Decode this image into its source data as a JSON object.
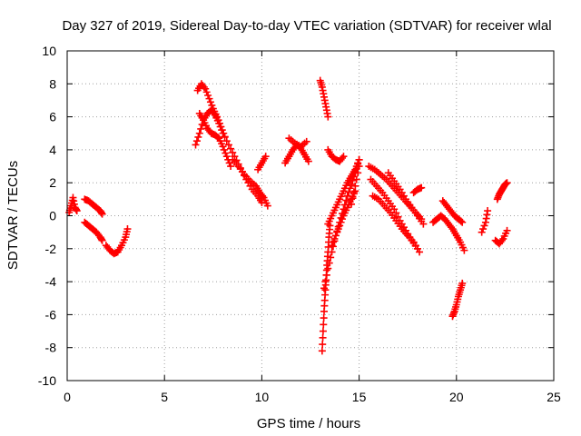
{
  "chart_data": {
    "type": "scatter",
    "title": "Day 327 of 2019, Sidereal Day-to-day VTEC variation (SDTVAR) for receiver wlal",
    "xlabel": "GPS time / hours",
    "ylabel": "SDTVAR / TECUs",
    "xlim": [
      0,
      25
    ],
    "ylim": [
      -10,
      10
    ],
    "xticks": [
      "0",
      "5",
      "10",
      "15",
      "20",
      "25"
    ],
    "yticks": [
      "-10",
      "-8",
      "-6",
      "-4",
      "-2",
      "0",
      "2",
      "4",
      "6",
      "8",
      "10"
    ],
    "grid": true,
    "marker": "+",
    "color": "#ff0000",
    "segments": [
      {
        "x": [
          0.1,
          0.2,
          0.3,
          0.4,
          0.5
        ],
        "y": [
          0.2,
          0.6,
          1.1,
          0.5,
          0.3
        ]
      },
      {
        "x": [
          0.9,
          1.1,
          1.3,
          1.5,
          1.7,
          1.8
        ],
        "y": [
          1.0,
          0.9,
          0.7,
          0.5,
          0.3,
          0.1
        ]
      },
      {
        "x": [
          0.9,
          1.1,
          1.3,
          1.5,
          1.7,
          1.8
        ],
        "y": [
          -0.4,
          -0.6,
          -0.8,
          -1.0,
          -1.3,
          -1.5
        ]
      },
      {
        "x": [
          2.0,
          2.2,
          2.4,
          2.6,
          2.8,
          3.0,
          3.1
        ],
        "y": [
          -1.8,
          -2.1,
          -2.3,
          -2.2,
          -1.8,
          -1.3,
          -0.8
        ]
      },
      {
        "x": [
          6.6,
          6.8,
          7.0,
          7.2,
          7.4,
          7.6,
          7.8,
          8.0,
          8.3,
          8.6,
          8.9,
          9.2,
          9.5,
          9.8,
          10.0
        ],
        "y": [
          4.3,
          5.0,
          5.8,
          6.2,
          6.4,
          6.1,
          5.6,
          5.0,
          4.3,
          3.6,
          2.9,
          2.2,
          1.6,
          1.2,
          0.8
        ]
      },
      {
        "x": [
          6.7,
          6.9,
          7.1,
          7.3,
          7.5,
          7.7,
          7.9,
          8.1
        ],
        "y": [
          7.6,
          8.0,
          7.7,
          7.1,
          6.5,
          6.0,
          5.4,
          4.8
        ]
      },
      {
        "x": [
          6.8,
          7.0,
          7.2,
          7.4,
          7.6,
          7.8,
          8.0,
          8.2,
          8.4
        ],
        "y": [
          6.2,
          5.8,
          5.3,
          5.0,
          4.9,
          4.7,
          4.2,
          3.6,
          3.0
        ]
      },
      {
        "x": [
          8.5,
          8.8,
          9.1,
          9.4,
          9.7,
          9.9,
          10.1,
          10.3
        ],
        "y": [
          3.4,
          3.0,
          2.5,
          2.1,
          1.8,
          1.4,
          1.1,
          0.6
        ]
      },
      {
        "x": [
          9.8,
          10.0,
          10.2
        ],
        "y": [
          2.8,
          3.2,
          3.6
        ]
      },
      {
        "x": [
          11.2,
          11.4,
          11.6,
          11.8,
          12.0,
          12.2,
          12.4
        ],
        "y": [
          3.2,
          3.6,
          4.0,
          4.3,
          4.1,
          3.7,
          3.3
        ]
      },
      {
        "x": [
          11.4,
          11.7,
          12.0,
          12.3
        ],
        "y": [
          4.7,
          4.4,
          4.2,
          4.5
        ]
      },
      {
        "x": [
          13.0,
          13.1,
          13.2,
          13.3,
          13.4
        ],
        "y": [
          8.2,
          7.8,
          7.2,
          6.6,
          6.0
        ]
      },
      {
        "x": [
          13.4,
          13.6,
          13.8,
          14.0,
          14.2
        ],
        "y": [
          4.0,
          3.6,
          3.4,
          3.3,
          3.6
        ]
      },
      {
        "x": [
          13.1,
          13.15,
          13.2,
          13.25,
          13.3,
          13.35,
          13.4,
          13.45,
          13.5
        ],
        "y": [
          -8.2,
          -7.0,
          -5.8,
          -4.8,
          -3.9,
          -3.0,
          -2.2,
          -1.3,
          -0.6
        ]
      },
      {
        "x": [
          13.2,
          13.4,
          13.6,
          13.8,
          14.0,
          14.2,
          14.4,
          14.6,
          14.8,
          15.0
        ],
        "y": [
          -4.4,
          -3.2,
          -2.2,
          -1.2,
          -0.4,
          0.4,
          1.2,
          1.9,
          2.6,
          3.4
        ]
      },
      {
        "x": [
          13.4,
          13.6,
          13.8,
          14.0,
          14.2,
          14.4,
          14.6,
          14.8,
          15.0
        ],
        "y": [
          -0.5,
          0.0,
          0.5,
          1.0,
          1.5,
          2.0,
          2.4,
          2.8,
          3.4
        ]
      },
      {
        "x": [
          13.6,
          13.8,
          14.0,
          14.2,
          14.4,
          14.6,
          14.8
        ],
        "y": [
          -1.8,
          -1.2,
          -0.6,
          0.0,
          0.5,
          1.0,
          1.5
        ]
      },
      {
        "x": [
          14.6,
          14.8,
          15.0
        ],
        "y": [
          0.7,
          1.8,
          3.0
        ]
      },
      {
        "x": [
          15.5,
          15.8,
          16.1,
          16.4,
          16.7,
          17.0,
          17.3,
          17.6,
          17.9,
          18.2
        ],
        "y": [
          3.0,
          2.8,
          2.5,
          2.2,
          1.8,
          1.4,
          1.0,
          0.6,
          0.2,
          -0.2
        ]
      },
      {
        "x": [
          15.6,
          15.9,
          16.2,
          16.5,
          16.8,
          17.1,
          17.4,
          17.7,
          18.0
        ],
        "y": [
          2.2,
          1.8,
          1.4,
          0.9,
          0.4,
          -0.3,
          -0.9,
          -1.5,
          -2.0
        ]
      },
      {
        "x": [
          15.7,
          16.0,
          16.3,
          16.6,
          16.9,
          17.2,
          17.5,
          17.8,
          18.1
        ],
        "y": [
          1.2,
          1.0,
          0.6,
          0.2,
          -0.3,
          -0.8,
          -1.2,
          -1.6,
          -2.2
        ]
      },
      {
        "x": [
          16.5,
          16.8,
          17.1,
          17.4,
          17.7,
          18.0,
          18.3
        ],
        "y": [
          2.6,
          2.1,
          1.6,
          1.0,
          0.5,
          0.0,
          -0.5
        ]
      },
      {
        "x": [
          17.8,
          18.0,
          18.2
        ],
        "y": [
          1.4,
          1.6,
          1.7
        ]
      },
      {
        "x": [
          18.8,
          19.0,
          19.2,
          19.4,
          19.6,
          19.8,
          20.0,
          20.2,
          20.4
        ],
        "y": [
          -0.4,
          -0.2,
          0.0,
          -0.2,
          -0.5,
          -0.8,
          -1.2,
          -1.6,
          -2.1
        ]
      },
      {
        "x": [
          19.3,
          19.5,
          19.7,
          19.9,
          20.1,
          20.3
        ],
        "y": [
          0.9,
          0.6,
          0.3,
          0.0,
          -0.2,
          -0.4
        ]
      },
      {
        "x": [
          19.8,
          19.9,
          20.0,
          20.1,
          20.2,
          20.3
        ],
        "y": [
          -6.1,
          -5.8,
          -5.4,
          -4.9,
          -4.5,
          -4.1
        ]
      },
      {
        "x": [
          21.3,
          21.5,
          21.6
        ],
        "y": [
          -1.0,
          -0.4,
          0.3
        ]
      },
      {
        "x": [
          22.1,
          22.2,
          22.3,
          22.4,
          22.5,
          22.6
        ],
        "y": [
          1.0,
          1.3,
          1.5,
          1.7,
          1.9,
          2.0
        ]
      },
      {
        "x": [
          22.0,
          22.2,
          22.4,
          22.6
        ],
        "y": [
          -1.5,
          -1.7,
          -1.4,
          -0.9
        ]
      }
    ]
  }
}
